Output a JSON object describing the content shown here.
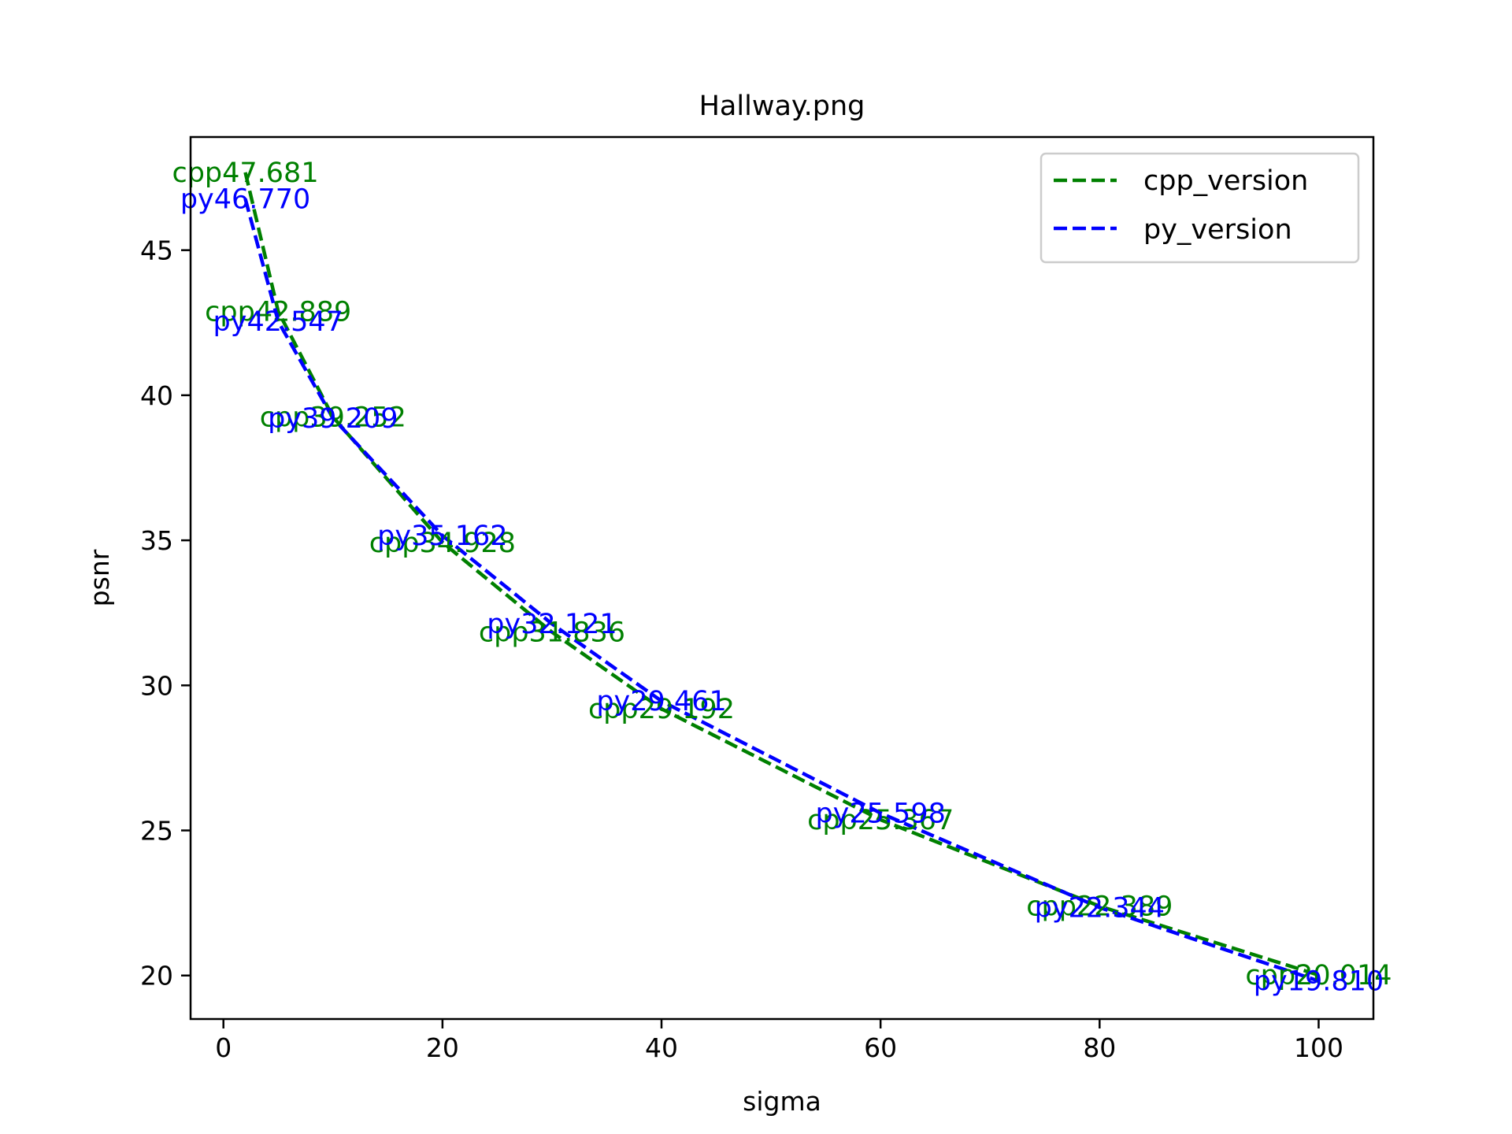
{
  "chart_data": {
    "type": "line",
    "title": "Hallway.png",
    "xlabel": "sigma",
    "ylabel": "psnr",
    "xlim": [
      -3,
      105
    ],
    "ylim": [
      18.5,
      48.9
    ],
    "xticks": [
      0,
      20,
      40,
      60,
      80,
      100
    ],
    "yticks": [
      20,
      25,
      30,
      35,
      40,
      45
    ],
    "grid": false,
    "legend_position": "top-right",
    "x": [
      2,
      5,
      10,
      20,
      30,
      40,
      60,
      80,
      100
    ],
    "series": [
      {
        "name": "cpp_version",
        "color": "#008000",
        "label_prefix": "cpp",
        "values": [
          47.681,
          42.889,
          39.252,
          34.928,
          31.836,
          29.192,
          25.367,
          22.389,
          20.014
        ],
        "labels": [
          "cpp47.681",
          "cpp42.889",
          "cpp39.252",
          "cpp34.928",
          "cpp31.836",
          "cpp29.192",
          "cpp25.367",
          "cpp22.389",
          "cpp20.014"
        ]
      },
      {
        "name": "py_version",
        "color": "#0000ff",
        "label_prefix": "py",
        "values": [
          46.77,
          42.547,
          39.209,
          35.162,
          32.121,
          29.461,
          25.598,
          22.344,
          19.81
        ],
        "labels": [
          "py46.770",
          "py42.547",
          "py39.209",
          "py35.162",
          "py32.121",
          "py29.461",
          "py25.598",
          "py22.344",
          "py19.810"
        ]
      }
    ]
  }
}
